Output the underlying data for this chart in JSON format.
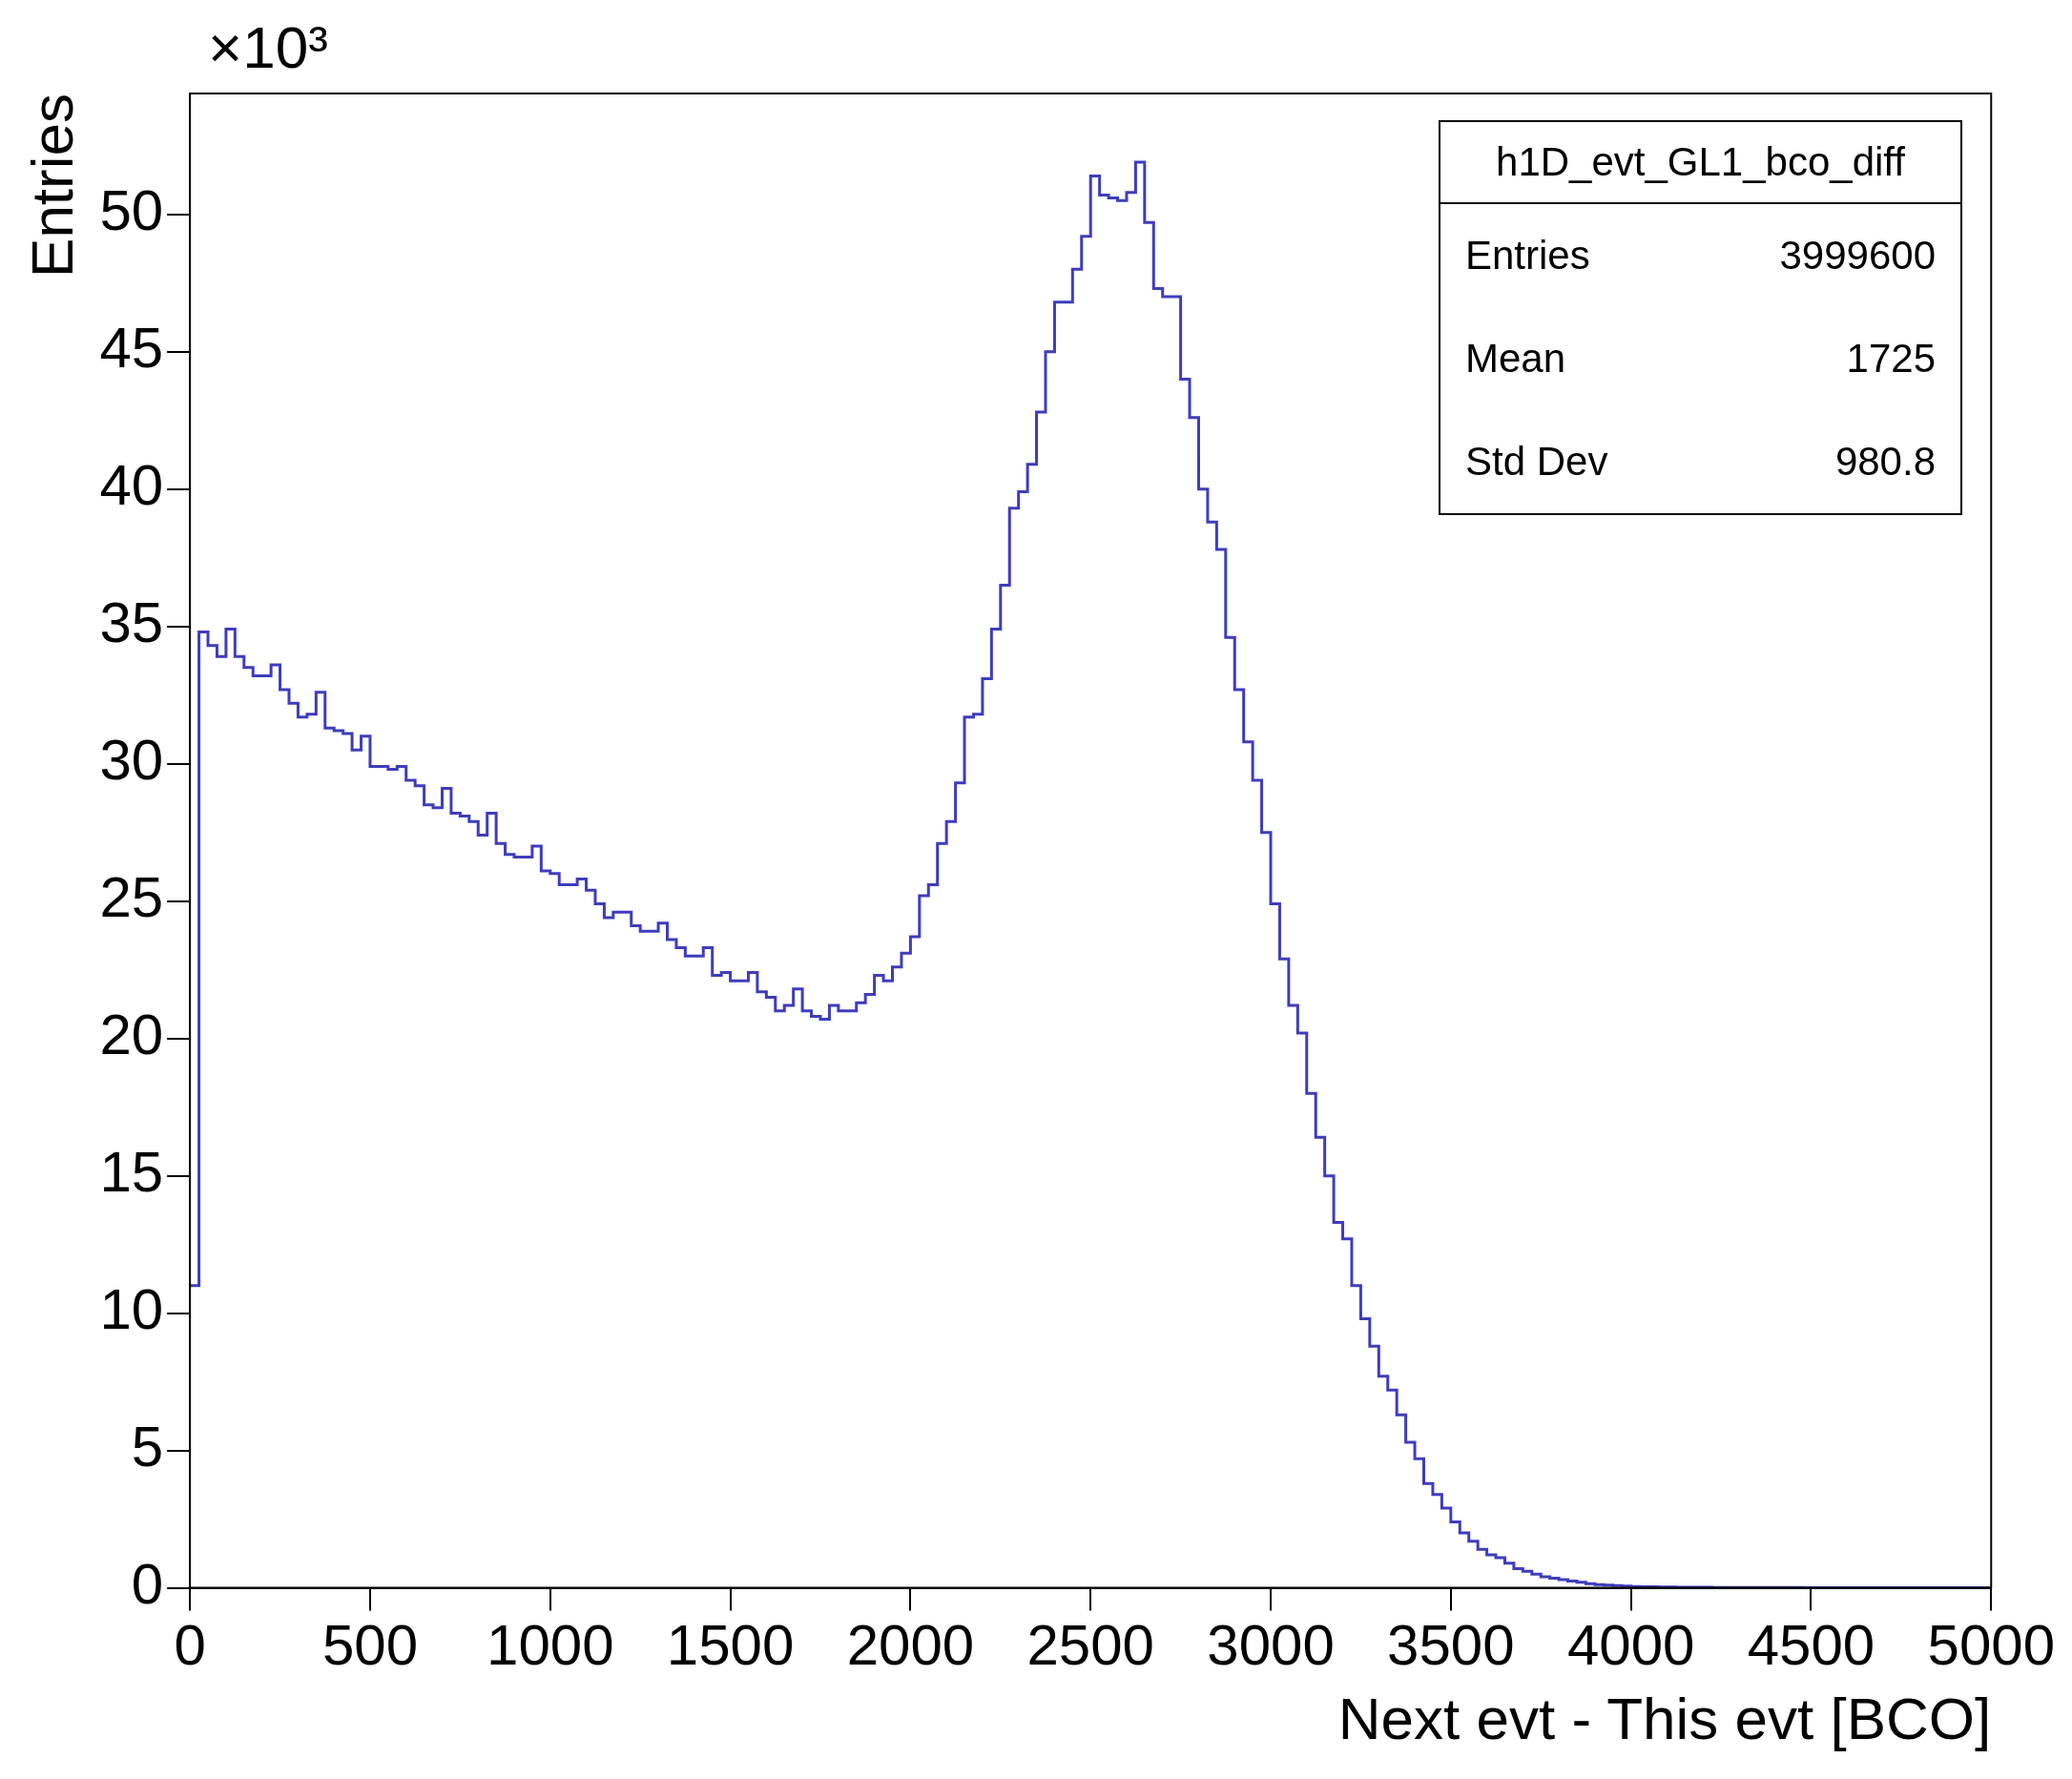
{
  "chart_data": {
    "type": "histogram",
    "xlabel": "Next evt - This evt [BCO]",
    "ylabel": "Entries",
    "bins": [
      0,
      25,
      50,
      75,
      100,
      125,
      150,
      175,
      200,
      225,
      250,
      275,
      300,
      325,
      350,
      375,
      400,
      425,
      450,
      475,
      500,
      525,
      550,
      575,
      600,
      625,
      650,
      675,
      700,
      725,
      750,
      775,
      800,
      825,
      850,
      875,
      900,
      925,
      950,
      975,
      1000,
      1025,
      1050,
      1075,
      1100,
      1125,
      1150,
      1175,
      1200,
      1225,
      1250,
      1275,
      1300,
      1325,
      1350,
      1375,
      1400,
      1425,
      1450,
      1475,
      1500,
      1525,
      1550,
      1575,
      1600,
      1625,
      1650,
      1675,
      1700,
      1725,
      1750,
      1775,
      1800,
      1825,
      1850,
      1875,
      1900,
      1925,
      1950,
      1975,
      2000,
      2025,
      2050,
      2075,
      2100,
      2125,
      2150,
      2175,
      2200,
      2225,
      2250,
      2275,
      2300,
      2325,
      2350,
      2375,
      2400,
      2425,
      2450,
      2475,
      2500,
      2525,
      2550,
      2575,
      2600,
      2625,
      2650,
      2675,
      2700,
      2725,
      2750,
      2775,
      2800,
      2825,
      2850,
      2875,
      2900,
      2925,
      2950,
      2975,
      3000,
      3025,
      3050,
      3075,
      3100,
      3125,
      3150,
      3175,
      3200,
      3225,
      3250,
      3275,
      3300,
      3325,
      3350,
      3375,
      3400,
      3425,
      3450,
      3475,
      3500,
      3525,
      3550,
      3575,
      3600,
      3625,
      3650,
      3675,
      3700,
      3725,
      3750,
      3775,
      3800,
      3825,
      3850,
      3875,
      3900,
      3925,
      3950,
      3975,
      4000,
      4025,
      4050,
      4075,
      4100,
      4125,
      4150,
      4175,
      4200,
      4225,
      4250,
      4275,
      4300,
      4325,
      4350,
      4375,
      4400,
      4425,
      4450,
      4475,
      4500,
      4525,
      4550,
      4575,
      4600,
      4625,
      4650,
      4675,
      4700,
      4725,
      4750,
      4775,
      4800,
      4825,
      4850,
      4875,
      4900,
      4925,
      4950,
      4975,
      5000
    ],
    "values": [
      11.0,
      34.8,
      34.3,
      33.9,
      34.9,
      33.9,
      33.5,
      33.2,
      33.2,
      33.6,
      32.7,
      32.2,
      31.7,
      31.8,
      32.6,
      31.3,
      31.2,
      31.1,
      30.5,
      31.0,
      29.9,
      29.9,
      29.8,
      29.9,
      29.4,
      29.2,
      28.5,
      28.4,
      29.1,
      28.2,
      28.1,
      27.9,
      27.4,
      28.2,
      27.1,
      26.7,
      26.6,
      26.6,
      27.0,
      26.1,
      26.0,
      25.6,
      25.6,
      25.8,
      25.4,
      24.9,
      24.4,
      24.6,
      24.6,
      24.1,
      23.9,
      23.9,
      24.2,
      23.6,
      23.3,
      23.0,
      23.0,
      23.3,
      22.3,
      22.4,
      22.1,
      22.1,
      22.4,
      21.7,
      21.5,
      21.0,
      21.2,
      21.8,
      21.0,
      20.8,
      20.7,
      21.2,
      21.0,
      21.0,
      21.3,
      21.6,
      22.3,
      22.1,
      22.6,
      23.1,
      23.7,
      25.2,
      25.6,
      27.1,
      27.9,
      29.3,
      31.7,
      31.8,
      33.1,
      34.9,
      36.5,
      39.3,
      39.9,
      40.9,
      42.8,
      45.0,
      46.8,
      46.8,
      48.0,
      49.2,
      51.4,
      50.7,
      50.6,
      50.5,
      50.8,
      51.9,
      49.7,
      47.3,
      47.0,
      47.0,
      44.0,
      42.6,
      40.0,
      38.8,
      37.8,
      34.6,
      32.7,
      30.8,
      29.4,
      27.5,
      24.9,
      22.9,
      21.2,
      20.2,
      18.0,
      16.4,
      15.0,
      13.3,
      12.7,
      11.0,
      9.8,
      8.8,
      7.7,
      7.2,
      6.3,
      5.3,
      4.7,
      3.8,
      3.4,
      2.9,
      2.4,
      2.0,
      1.7,
      1.4,
      1.2,
      1.1,
      0.9,
      0.7,
      0.6,
      0.5,
      0.4,
      0.35,
      0.3,
      0.25,
      0.2,
      0.15,
      0.12,
      0.1,
      0.08,
      0.06,
      0.05,
      0.04,
      0.04,
      0.03,
      0.03,
      0.02,
      0.02,
      0.02,
      0.02,
      0.01,
      0.01,
      0.01,
      0.01,
      0.01,
      0.01,
      0.01,
      0.01,
      0.01,
      0.01,
      0,
      0,
      0,
      0,
      0,
      0,
      0,
      0,
      0,
      0,
      0,
      0,
      0,
      0,
      0,
      0,
      0,
      0,
      0,
      0,
      0
    ],
    "color": "#3d3dbd",
    "xlim": [
      0,
      5000
    ],
    "xticks": [
      0,
      500,
      1000,
      1500,
      2000,
      2500,
      3000,
      3500,
      4000,
      4500,
      5000
    ],
    "ylim": [
      0,
      54.4
    ],
    "yticks": [
      0,
      5,
      10,
      15,
      20,
      25,
      30,
      35,
      40,
      45,
      50
    ],
    "grid": false,
    "legend": false,
    "annotations": [
      "×10³",
      "h1D_evt_GL1_bco_diff",
      "Entries 3999600",
      "Mean 1725",
      "Std Dev 980.8"
    ]
  }
}
